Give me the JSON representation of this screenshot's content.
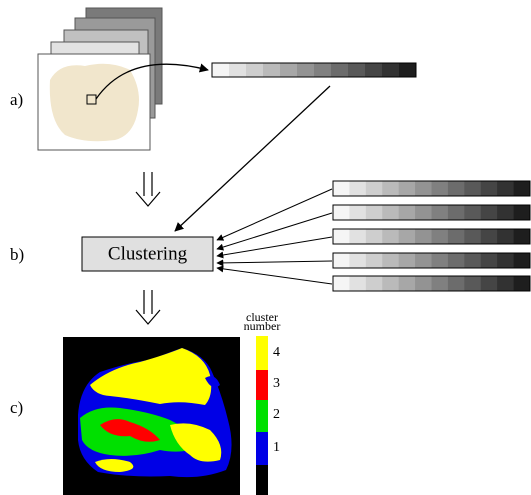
{
  "labels": {
    "a": "a)",
    "b": "b)",
    "c": "c)"
  },
  "clustering": "Clustering",
  "colorbar": {
    "title": [
      "cluster",
      "number"
    ],
    "ticks": [
      "4",
      "3",
      "2",
      "1"
    ]
  }
}
